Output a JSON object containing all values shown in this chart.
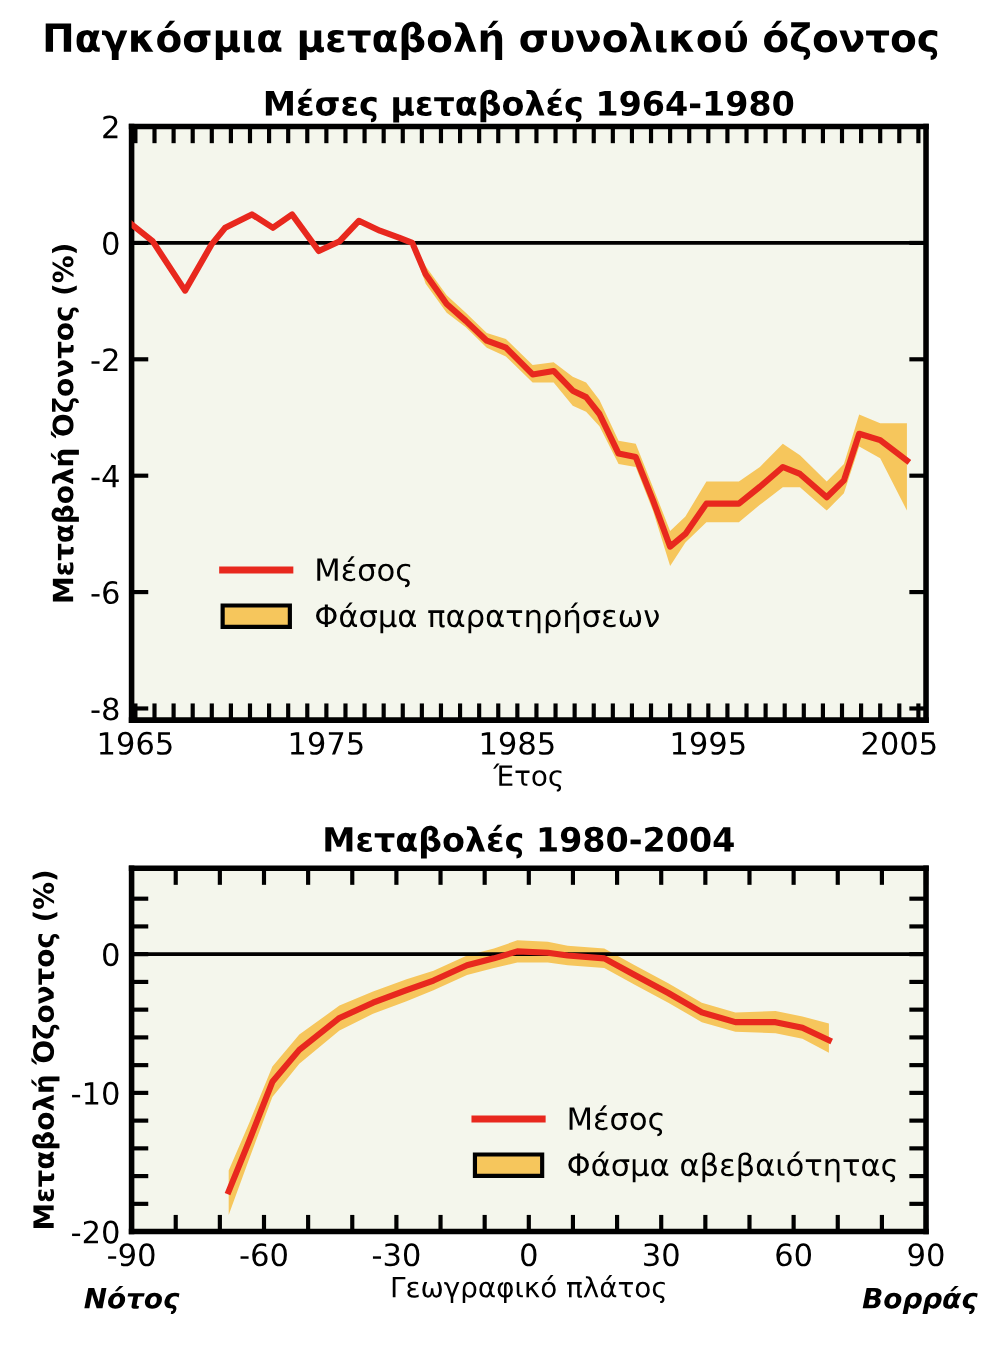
{
  "chart_data": [
    {
      "type": "line",
      "title": "Παγκόσμια μεταβολή συνολικού όζοντος",
      "subtitle": "Μέσες μεταβολές 1964-1980",
      "xlabel": "Έτος",
      "ylabel": "Μεταβολή Όζοντος (%)",
      "x": [
        1964.8,
        1965.9,
        1967.6,
        1969,
        1969.7,
        1971.1,
        1972.2,
        1973.2,
        1974.6,
        1975.7,
        1976.7,
        1977.8,
        1978.8,
        1979.5,
        1980.2,
        1981.3,
        1982.3,
        1983.4,
        1984.4,
        1985.8,
        1986.9,
        1987.9,
        1988.6,
        1989.3,
        1990.3,
        1991.2,
        1992.1,
        1993,
        1993.8,
        1994.9,
        1996.6,
        1997.7,
        1998.9,
        1999.8,
        2001.2,
        2002.1,
        2002.9,
        2004,
        2005.4
      ],
      "series": [
        {
          "name": "Μέσος",
          "color": "#e8281e",
          "values": [
            0.32,
            0.03,
            -0.82,
            -0.02,
            0.26,
            0.49,
            0.26,
            0.49,
            -0.14,
            0.03,
            0.38,
            0.21,
            0.09,
            0,
            -0.54,
            -1.05,
            -1.34,
            -1.68,
            -1.8,
            -2.26,
            -2.2,
            -2.54,
            -2.65,
            -2.94,
            -3.62,
            -3.68,
            -4.42,
            -5.22,
            -5.0,
            -4.48,
            -4.48,
            -4.19,
            -3.85,
            -3.97,
            -4.37,
            -4.08,
            -3.28,
            -3.39,
            -3.74
          ],
          "lower": [
            null,
            null,
            null,
            null,
            null,
            null,
            null,
            null,
            null,
            null,
            null,
            null,
            null,
            -0.05,
            -0.7,
            -1.2,
            -1.45,
            -1.8,
            -1.95,
            -2.4,
            -2.4,
            -2.8,
            -2.9,
            -3.15,
            -3.8,
            -3.85,
            -4.6,
            -5.55,
            -5.15,
            -4.8,
            -4.8,
            -4.5,
            -4.2,
            -4.2,
            -4.6,
            -4.3,
            -3.5,
            -3.7,
            -4.6
          ],
          "upper": [
            null,
            null,
            null,
            null,
            null,
            null,
            null,
            null,
            null,
            null,
            null,
            null,
            null,
            0.05,
            -0.4,
            -0.9,
            -1.2,
            -1.55,
            -1.65,
            -2.1,
            -2.05,
            -2.3,
            -2.4,
            -2.7,
            -3.4,
            -3.45,
            -4.2,
            -4.95,
            -4.7,
            -4.1,
            -4.1,
            -3.85,
            -3.45,
            -3.65,
            -4.1,
            -3.8,
            -2.95,
            -3.1,
            -3.1
          ]
        }
      ],
      "xlim": [
        1964.8,
        2006.4
      ],
      "ylim": [
        -8.2,
        2
      ],
      "xticks": [
        {
          "value": 1965,
          "label": "1965"
        },
        {
          "value": 1966,
          "label": null
        },
        {
          "value": 1967,
          "label": null
        },
        {
          "value": 1968,
          "label": null
        },
        {
          "value": 1969,
          "label": null
        },
        {
          "value": 1970,
          "label": null
        },
        {
          "value": 1971,
          "label": null
        },
        {
          "value": 1972,
          "label": null
        },
        {
          "value": 1973,
          "label": null
        },
        {
          "value": 1974,
          "label": null
        },
        {
          "value": 1975,
          "label": "1975"
        },
        {
          "value": 1976,
          "label": null
        },
        {
          "value": 1977,
          "label": null
        },
        {
          "value": 1978,
          "label": null
        },
        {
          "value": 1979,
          "label": null
        },
        {
          "value": 1980,
          "label": null
        },
        {
          "value": 1981,
          "label": null
        },
        {
          "value": 1982,
          "label": null
        },
        {
          "value": 1983,
          "label": null
        },
        {
          "value": 1984,
          "label": null
        },
        {
          "value": 1985,
          "label": "1985"
        },
        {
          "value": 1986,
          "label": null
        },
        {
          "value": 1987,
          "label": null
        },
        {
          "value": 1988,
          "label": null
        },
        {
          "value": 1989,
          "label": null
        },
        {
          "value": 1990,
          "label": null
        },
        {
          "value": 1991,
          "label": null
        },
        {
          "value": 1992,
          "label": null
        },
        {
          "value": 1993,
          "label": null
        },
        {
          "value": 1994,
          "label": null
        },
        {
          "value": 1995,
          "label": "1995"
        },
        {
          "value": 1996,
          "label": null
        },
        {
          "value": 1997,
          "label": null
        },
        {
          "value": 1998,
          "label": null
        },
        {
          "value": 1999,
          "label": null
        },
        {
          "value": 2000,
          "label": null
        },
        {
          "value": 2001,
          "label": null
        },
        {
          "value": 2002,
          "label": null
        },
        {
          "value": 2003,
          "label": null
        },
        {
          "value": 2004,
          "label": null
        },
        {
          "value": 2005,
          "label": "2005"
        },
        {
          "value": 2006,
          "label": null
        }
      ],
      "yticks": [
        2,
        0,
        -2,
        -4,
        -6,
        -8
      ],
      "ref_lines": [
        {
          "axis": "y",
          "value": 0,
          "label": null,
          "color": "#000000"
        }
      ],
      "annotations": [
        "Φάσμα παρατηρήσεων"
      ],
      "grid": false,
      "legend": "bottom left"
    },
    {
      "type": "line",
      "title": "Μεταβολές 1980-2004",
      "xlabel": "Γεωγραφικό πλάτος",
      "ylabel": "Μεταβολή Όζοντος (%)",
      "annotations": [
        "Φάσμα αβεβαιότητας",
        "Νότος",
        "Βορράς"
      ],
      "x": [
        -68,
        -63.4,
        -58.1,
        -52,
        -42.9,
        -35.3,
        -27.7,
        -21.6,
        -14,
        -7.9,
        -2.6,
        4.3,
        8.8,
        17.1,
        24,
        31.6,
        39.2,
        46.8,
        55.9,
        62,
        68
      ],
      "series": [
        {
          "name": "Μέσος",
          "color": "#e8281e",
          "values": [
            -17.1,
            -13.5,
            -9.2,
            -6.9,
            -4.6,
            -3.5,
            -2.6,
            -1.9,
            -0.8,
            -0.3,
            0.2,
            0.1,
            -0.1,
            -0.3,
            -1.5,
            -2.8,
            -4.2,
            -4.9,
            -4.9,
            -5.3,
            -6.2
          ],
          "lower": [
            -18.8,
            -14.8,
            -10.3,
            -7.9,
            -5.5,
            -4.3,
            -3.4,
            -2.6,
            -1.5,
            -1.0,
            -0.6,
            -0.6,
            -0.8,
            -1.0,
            -2.2,
            -3.5,
            -4.9,
            -5.6,
            -5.7,
            -6.1,
            -7.1
          ],
          "upper": [
            -15.6,
            -12.2,
            -8.1,
            -5.8,
            -3.7,
            -2.7,
            -1.8,
            -1.2,
            -0.1,
            0.4,
            1.0,
            0.9,
            0.6,
            0.4,
            -0.8,
            -2.1,
            -3.5,
            -4.2,
            -4.1,
            -4.5,
            -5.0
          ]
        }
      ],
      "xlim": [
        -90,
        90
      ],
      "ylim": [
        -20,
        6.2
      ],
      "xticks": [
        -90,
        {
          "value": -80,
          "label": null
        },
        {
          "value": -70,
          "label": null
        },
        -60,
        {
          "value": -50,
          "label": null
        },
        {
          "value": -40,
          "label": null
        },
        -30,
        {
          "value": -20,
          "label": null
        },
        {
          "value": -10,
          "label": null
        },
        0,
        {
          "value": 10,
          "label": null
        },
        {
          "value": 20,
          "label": null
        },
        30,
        {
          "value": 40,
          "label": null
        },
        {
          "value": 50,
          "label": null
        },
        60,
        {
          "value": 70,
          "label": null
        },
        {
          "value": 80,
          "label": null
        },
        90
      ],
      "yticks": [
        -20,
        {
          "value": -18,
          "label": null
        },
        {
          "value": -16,
          "label": null
        },
        {
          "value": -14,
          "label": null
        },
        {
          "value": -12,
          "label": null
        },
        -10,
        {
          "value": -8,
          "label": null
        },
        {
          "value": -6,
          "label": null
        },
        {
          "value": -4,
          "label": null
        },
        {
          "value": -2,
          "label": null
        },
        0,
        {
          "value": 2,
          "label": null
        },
        {
          "value": 4,
          "label": null
        }
      ],
      "ref_lines": [
        {
          "axis": "y",
          "value": 0,
          "label": null,
          "color": "#000000"
        }
      ],
      "grid": false,
      "legend": "bottom right"
    }
  ]
}
